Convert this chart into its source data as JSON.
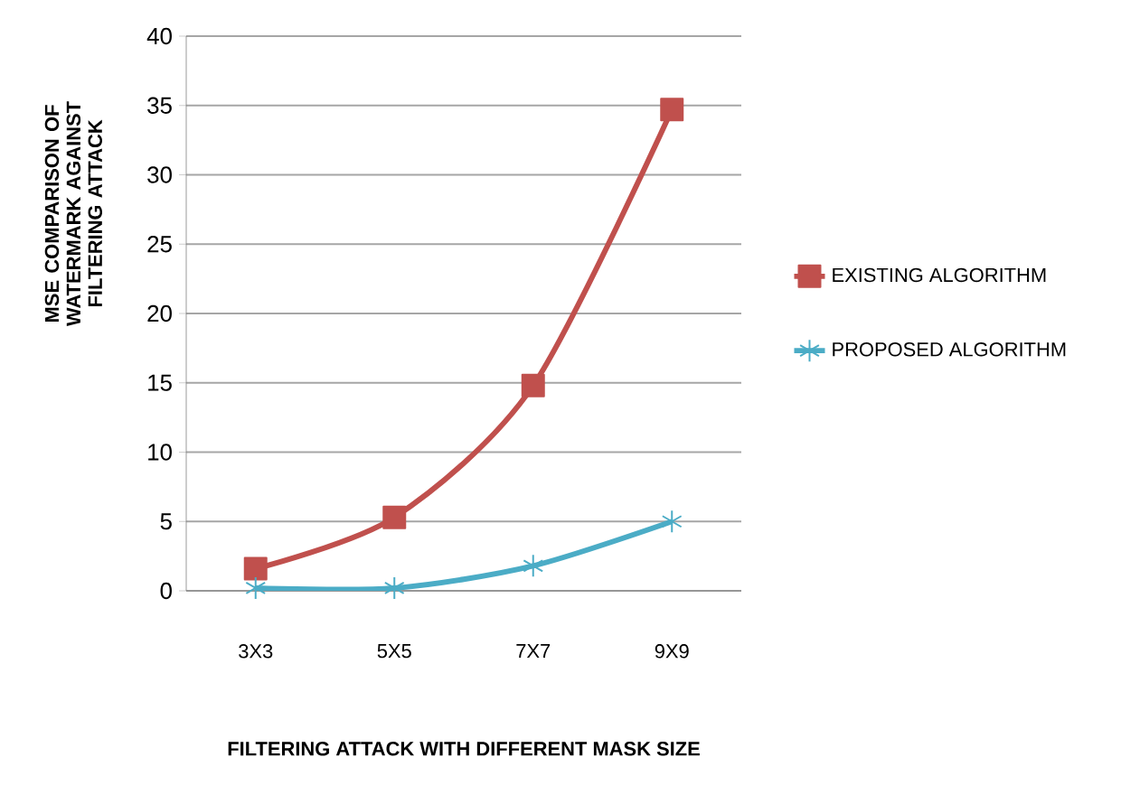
{
  "chart_data": {
    "type": "line",
    "xlabel": "FILTERING ATTACK WITH DIFFERENT MASK SIZE",
    "ylabel": "MSE COMPARISON OF WATERMARK AGAINST FILTERING ATTACK",
    "categories": [
      "3X3",
      "5X5",
      "7X7",
      "9X9"
    ],
    "series": [
      {
        "name": "EXISTING ALGORITHM",
        "color": "#c0504d",
        "marker": "square",
        "values": [
          1.6,
          5.3,
          14.8,
          34.7
        ]
      },
      {
        "name": "PROPOSED ALGORITHM",
        "color": "#4bacc6",
        "marker": "cross",
        "values": [
          0.2,
          0.2,
          1.8,
          5.0
        ]
      }
    ],
    "ylim": [
      0,
      40
    ],
    "yticks": [
      0,
      5,
      10,
      15,
      20,
      25,
      30,
      35,
      40
    ],
    "grid": "y",
    "legend": "right"
  }
}
